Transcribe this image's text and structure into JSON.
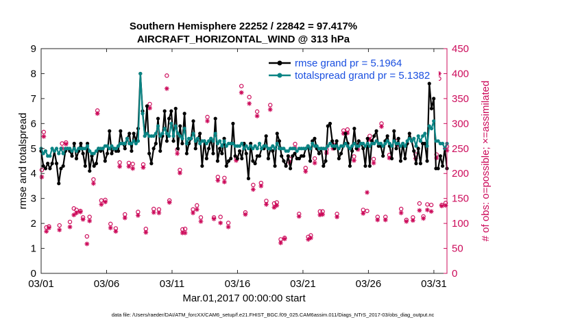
{
  "chart_data": {
    "type": "line",
    "title": "Southern Hemisphere 22252 / 22842 = 97.417%",
    "subtitle": "AIRCRAFT_HORIZONTAL_WIND @ 313 hPa",
    "xlabel": "Mar.01,2017 00:00:00 start",
    "ylabel": "rmse and totalspread",
    "ylabel_right": "# of obs: o=possible; ×=assimilated",
    "footer": "data file: /Users/raeder/DAI/ATM_forcXX/CAM6_setup/f.e21.FHIST_BGC.f09_025.CAM6assim.011/Diags_NTrS_2017-03/obs_diag_output.nc",
    "xlim": [
      0,
      31
    ],
    "ylim": [
      0,
      9
    ],
    "ylim_right": [
      0,
      450
    ],
    "x_ticks": [
      0,
      5,
      10,
      15,
      20,
      25,
      30
    ],
    "x_tick_labels": [
      "03/01",
      "03/06",
      "03/11",
      "03/16",
      "03/21",
      "03/26",
      "03/31"
    ],
    "y_ticks": [
      0,
      1,
      2,
      3,
      4,
      5,
      6,
      7,
      8,
      9
    ],
    "y_tick_labels": [
      "0",
      "1",
      "2",
      "3",
      "4",
      "5",
      "6",
      "7",
      "8",
      "9"
    ],
    "y_right_ticks": [
      0,
      50,
      100,
      150,
      200,
      250,
      300,
      350,
      400,
      450
    ],
    "y_right_tick_labels": [
      "0",
      "50",
      "100",
      "150",
      "200",
      "250",
      "300",
      "350",
      "400",
      "450"
    ],
    "series": [
      {
        "name": "rmse grand pr = 5.1964",
        "color": "#000000",
        "values": [
          4.9,
          4.3,
          4.2,
          4.4,
          4.2,
          4.4,
          4.9,
          4.4,
          3.6,
          4.2,
          4.3,
          4.9,
          5.0,
          4.9,
          4.7,
          5.2,
          4.6,
          4.9,
          5.2,
          4.8,
          4.3,
          5.2,
          4.1,
          4.7,
          4.3,
          4.4,
          5.0,
          4.9,
          5.0,
          4.5,
          4.8,
          5.7,
          4.8,
          5.0,
          4.9,
          4.9,
          5.7,
          5.2,
          5.0,
          5.4,
          5.6,
          4.9,
          5.6,
          5.3,
          5.8,
          8.0,
          6.5,
          5.5,
          6.7,
          4.8,
          4.4,
          5.0,
          5.2,
          6.2,
          4.9,
          5.5,
          6.5,
          5.3,
          6.2,
          6.5,
          5.3,
          6.6,
          5.0,
          5.9,
          5.2,
          6.4,
          4.8,
          5.2,
          5.4,
          6.1,
          5.0,
          5.4,
          5.6,
          4.3,
          5.3,
          4.6,
          5.0,
          5.4,
          4.8,
          6.2,
          4.5,
          5.0,
          4.8,
          5.4,
          4.3,
          4.5,
          4.6,
          6.0,
          4.7,
          4.6,
          4.9,
          4.6,
          5.2,
          4.8,
          3.8,
          5.2,
          4.5,
          4.4,
          4.7,
          4.7,
          5.0,
          5.0,
          5.5,
          4.6,
          5.0,
          4.9,
          4.3,
          5.6,
          5.3,
          4.7,
          4.5,
          4.3,
          4.7,
          4.2,
          4.7,
          4.8,
          4.6,
          4.6,
          4.7,
          4.7,
          5.0,
          5.1,
          4.5,
          5.3,
          5.4,
          5.0,
          4.8,
          5.0,
          4.3,
          4.5,
          5.9,
          6.0,
          5.3,
          5.0,
          5.3,
          4.6,
          4.8,
          5.1,
          5.6,
          5.2,
          4.3,
          4.9,
          5.8,
          5.0,
          5.3,
          5.2,
          5.0,
          4.3,
          5.4,
          4.3,
          5.3,
          5.5,
          5.7,
          5.1,
          5.1,
          4.7,
          5.3,
          5.5,
          5.1,
          4.6,
          5.7,
          5.0,
          5.4,
          4.5,
          5.2,
          4.6,
          5.2,
          5.6,
          5.3,
          4.9,
          4.4,
          5.0,
          4.4,
          5.2,
          5.2,
          4.5,
          7.6,
          6.6,
          7.0,
          4.2,
          4.2,
          4.7,
          4.3,
          5.0,
          4.2
        ]
      },
      {
        "name": "totalspread grand pr = 5.1382",
        "color": "#0a8484",
        "values": [
          5.0,
          4.8,
          4.9,
          4.7,
          4.7,
          5.0,
          4.9,
          5.0,
          4.8,
          5.0,
          4.8,
          5.0,
          5.0,
          5.0,
          4.9,
          5.0,
          4.9,
          5.0,
          5.0,
          5.0,
          5.0,
          5.1,
          4.9,
          4.8,
          4.8,
          4.9,
          5.0,
          5.0,
          5.0,
          5.1,
          5.1,
          5.0,
          5.1,
          5.0,
          5.0,
          5.1,
          5.2,
          5.2,
          5.2,
          5.4,
          5.2,
          5.2,
          5.3,
          5.2,
          5.3,
          8.0,
          6.4,
          5.5,
          5.6,
          5.5,
          5.5,
          5.5,
          5.6,
          5.9,
          5.5,
          5.6,
          5.8,
          5.6,
          5.5,
          6.0,
          5.5,
          5.9,
          5.6,
          5.5,
          5.4,
          5.8,
          5.2,
          5.4,
          5.4,
          5.6,
          5.3,
          5.4,
          5.2,
          5.3,
          5.3,
          5.2,
          5.3,
          5.4,
          5.3,
          5.6,
          5.2,
          5.3,
          5.1,
          5.3,
          5.1,
          5.2,
          5.2,
          5.2,
          5.1,
          5.1,
          5.1,
          5.2,
          5.0,
          5.1,
          5.0,
          5.1,
          5.0,
          5.1,
          5.0,
          5.2,
          5.0,
          5.1,
          5.1,
          5.0,
          5.0,
          5.1,
          5.0,
          5.2,
          5.0,
          5.0,
          5.0,
          4.9,
          4.9,
          5.0,
          5.0,
          5.0,
          4.9,
          5.0,
          5.0,
          5.0,
          5.0,
          5.1,
          5.0,
          5.2,
          5.1,
          5.1,
          5.0,
          5.0,
          5.0,
          5.0,
          5.1,
          5.2,
          5.1,
          5.1,
          5.1,
          5.0,
          5.1,
          5.1,
          5.2,
          5.1,
          5.0,
          5.1,
          5.2,
          5.1,
          5.1,
          5.2,
          5.2,
          5.1,
          5.2,
          5.1,
          5.2,
          5.2,
          5.3,
          5.2,
          5.2,
          5.1,
          5.2,
          5.3,
          5.2,
          5.1,
          5.3,
          5.2,
          5.2,
          5.1,
          5.2,
          5.1,
          5.3,
          5.4,
          5.3,
          5.4,
          5.1,
          5.5,
          5.3,
          5.5,
          5.6,
          5.1,
          5.9,
          5.8,
          6.1,
          5.3,
          5.3,
          5.2,
          5.2,
          5.0,
          5.2
        ]
      }
    ],
    "obs_possible": [
      [
        0.05,
        207
      ],
      [
        0.2,
        283
      ],
      [
        0.4,
        92
      ],
      [
        0.6,
        94
      ],
      [
        1.4,
        96
      ],
      [
        1.6,
        260
      ],
      [
        1.9,
        262
      ],
      [
        2.2,
        103
      ],
      [
        2.5,
        130
      ],
      [
        2.7,
        127
      ],
      [
        3.0,
        125
      ],
      [
        3.2,
        112
      ],
      [
        3.5,
        74
      ],
      [
        3.7,
        113
      ],
      [
        4.0,
        188
      ],
      [
        4.3,
        326
      ],
      [
        4.6,
        146
      ],
      [
        4.9,
        147
      ],
      [
        5.3,
        99
      ],
      [
        5.7,
        90
      ],
      [
        6.0,
        222
      ],
      [
        6.4,
        118
      ],
      [
        6.7,
        221
      ],
      [
        7.0,
        219
      ],
      [
        7.4,
        123
      ],
      [
        7.8,
        218
      ],
      [
        8.0,
        89
      ],
      [
        8.3,
        339
      ],
      [
        8.6,
        129
      ],
      [
        9.0,
        128
      ],
      [
        9.6,
        396
      ],
      [
        9.8,
        146
      ],
      [
        10.4,
        248
      ],
      [
        10.6,
        207
      ],
      [
        10.8,
        88
      ],
      [
        11.0,
        89
      ],
      [
        11.6,
        128
      ],
      [
        11.9,
        136
      ],
      [
        12.2,
        112
      ],
      [
        12.7,
        313
      ],
      [
        13.2,
        112
      ],
      [
        13.5,
        193
      ],
      [
        13.7,
        113
      ],
      [
        14.0,
        191
      ],
      [
        14.3,
        101
      ],
      [
        14.9,
        232
      ],
      [
        15.3,
        375
      ],
      [
        15.6,
        122
      ],
      [
        15.9,
        353
      ],
      [
        16.2,
        177
      ],
      [
        16.5,
        324
      ],
      [
        16.8,
        181
      ],
      [
        17.2,
        145
      ],
      [
        17.5,
        337
      ],
      [
        17.8,
        140
      ],
      [
        18.0,
        142
      ],
      [
        18.3,
        68
      ],
      [
        18.6,
        71
      ],
      [
        19.0,
        229
      ],
      [
        19.4,
        259
      ],
      [
        19.7,
        119
      ],
      [
        20.2,
        211
      ],
      [
        20.4,
        73
      ],
      [
        20.6,
        76
      ],
      [
        20.9,
        230
      ],
      [
        21.3,
        124
      ],
      [
        21.5,
        124
      ],
      [
        21.8,
        248
      ],
      [
        22.3,
        258
      ],
      [
        22.6,
        119
      ],
      [
        23.1,
        286
      ],
      [
        23.4,
        288
      ],
      [
        23.9,
        234
      ],
      [
        24.2,
        256
      ],
      [
        24.6,
        127
      ],
      [
        24.9,
        125
      ],
      [
        25.1,
        275
      ],
      [
        25.4,
        229
      ],
      [
        25.7,
        113
      ],
      [
        26.0,
        300
      ],
      [
        26.3,
        113
      ],
      [
        26.6,
        237
      ],
      [
        27.2,
        265
      ],
      [
        27.5,
        129
      ],
      [
        27.9,
        107
      ],
      [
        28.4,
        112
      ],
      [
        28.6,
        238
      ],
      [
        28.9,
        140
      ],
      [
        29.2,
        114
      ],
      [
        29.5,
        138
      ],
      [
        29.8,
        137
      ],
      [
        30.2,
        238
      ],
      [
        30.4,
        390
      ],
      [
        30.6,
        137
      ],
      [
        30.9,
        141
      ],
      [
        31.0,
        254
      ]
    ],
    "obs_assimilated": [
      [
        0.05,
        193
      ],
      [
        0.2,
        274
      ],
      [
        0.4,
        84
      ],
      [
        0.6,
        91
      ],
      [
        1.4,
        87
      ],
      [
        1.6,
        250
      ],
      [
        1.9,
        259
      ],
      [
        2.2,
        93
      ],
      [
        2.5,
        117
      ],
      [
        2.7,
        121
      ],
      [
        3.0,
        123
      ],
      [
        3.2,
        108
      ],
      [
        3.5,
        59
      ],
      [
        3.7,
        105
      ],
      [
        4.0,
        180
      ],
      [
        4.3,
        320
      ],
      [
        4.6,
        138
      ],
      [
        4.9,
        143
      ],
      [
        5.3,
        91
      ],
      [
        5.7,
        84
      ],
      [
        6.0,
        214
      ],
      [
        6.4,
        111
      ],
      [
        6.7,
        214
      ],
      [
        7.0,
        210
      ],
      [
        7.4,
        116
      ],
      [
        7.8,
        212
      ],
      [
        8.0,
        82
      ],
      [
        8.3,
        331
      ],
      [
        8.6,
        122
      ],
      [
        9.0,
        121
      ],
      [
        9.6,
        370
      ],
      [
        9.8,
        142
      ],
      [
        10.4,
        240
      ],
      [
        10.6,
        201
      ],
      [
        10.8,
        81
      ],
      [
        11.0,
        81
      ],
      [
        11.6,
        121
      ],
      [
        11.9,
        128
      ],
      [
        12.2,
        104
      ],
      [
        12.7,
        305
      ],
      [
        13.2,
        109
      ],
      [
        13.5,
        186
      ],
      [
        13.7,
        101
      ],
      [
        14.0,
        183
      ],
      [
        14.3,
        93
      ],
      [
        14.9,
        226
      ],
      [
        15.3,
        362
      ],
      [
        15.6,
        118
      ],
      [
        15.9,
        340
      ],
      [
        16.2,
        168
      ],
      [
        16.5,
        315
      ],
      [
        16.8,
        175
      ],
      [
        17.2,
        138
      ],
      [
        17.5,
        328
      ],
      [
        17.8,
        132
      ],
      [
        18.0,
        136
      ],
      [
        18.3,
        61
      ],
      [
        18.6,
        69
      ],
      [
        19.0,
        222
      ],
      [
        19.4,
        251
      ],
      [
        19.7,
        114
      ],
      [
        20.2,
        204
      ],
      [
        20.4,
        68
      ],
      [
        20.6,
        71
      ],
      [
        20.9,
        221
      ],
      [
        21.3,
        117
      ],
      [
        21.5,
        118
      ],
      [
        21.8,
        241
      ],
      [
        22.3,
        250
      ],
      [
        22.6,
        113
      ],
      [
        23.1,
        280
      ],
      [
        23.4,
        281
      ],
      [
        23.9,
        226
      ],
      [
        24.2,
        248
      ],
      [
        24.6,
        120
      ],
      [
        24.9,
        162
      ],
      [
        25.1,
        268
      ],
      [
        25.4,
        221
      ],
      [
        25.7,
        107
      ],
      [
        26.0,
        294
      ],
      [
        26.3,
        107
      ],
      [
        26.6,
        231
      ],
      [
        27.2,
        257
      ],
      [
        27.5,
        121
      ],
      [
        27.9,
        104
      ],
      [
        28.4,
        106
      ],
      [
        28.6,
        230
      ],
      [
        28.9,
        126
      ],
      [
        29.2,
        110
      ],
      [
        29.5,
        127
      ],
      [
        29.8,
        124
      ],
      [
        30.2,
        231
      ],
      [
        30.4,
        400
      ],
      [
        30.6,
        135
      ],
      [
        30.9,
        136
      ],
      [
        31.0,
        246
      ]
    ],
    "obs_colors": {
      "possible": "#cc0a5a",
      "assimilated": "#cc0a5a",
      "axis_right": "#cc0a5a"
    }
  }
}
